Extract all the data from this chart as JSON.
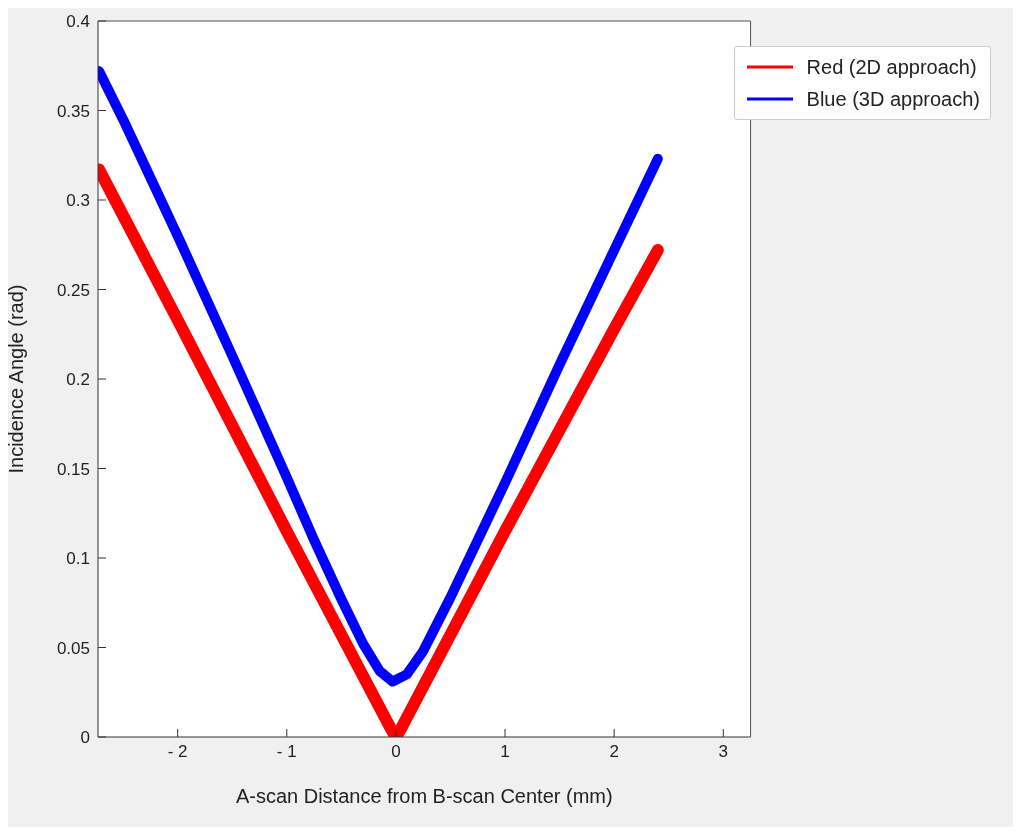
{
  "chart_data": {
    "type": "line",
    "xlabel": "A-scan Distance from B-scan Center (mm)",
    "ylabel": "Incidence Angle (rad)",
    "xlim": [
      -2.73,
      3.25
    ],
    "xticks": [
      {
        "value": -2,
        "label": "- 2"
      },
      {
        "value": -1,
        "label": "- 1"
      },
      0,
      1,
      2,
      3
    ],
    "ylim": [
      0,
      0.4
    ],
    "yticks": [
      0,
      0.05,
      0.1,
      0.15,
      0.2,
      0.25,
      0.3,
      0.35,
      0.4
    ],
    "grid": false,
    "legend": "top right",
    "marker": "none",
    "line_style": "solid",
    "series": [
      {
        "name": "Red (2D approach)",
        "color": "#ff0000",
        "x": [
          -2.72,
          -2,
          -1,
          -0.05,
          0,
          0.05,
          1,
          2,
          2.4
        ],
        "values": [
          0.317,
          0.233,
          0.115,
          0.005,
          0,
          0.005,
          0.115,
          0.228,
          0.272
        ]
      },
      {
        "name": "Blue (3D approach)",
        "color": "#0000ff",
        "x": [
          -2.72,
          -2.5,
          -2,
          -1.5,
          -1,
          -0.75,
          -0.5,
          -0.3,
          -0.15,
          -0.03,
          0.1,
          0.25,
          0.5,
          0.75,
          1,
          1.5,
          2,
          2.4
        ],
        "values": [
          0.372,
          0.345,
          0.28,
          0.213,
          0.145,
          0.11,
          0.077,
          0.052,
          0.037,
          0.031,
          0.035,
          0.048,
          0.078,
          0.11,
          0.142,
          0.208,
          0.272,
          0.323
        ]
      }
    ]
  }
}
